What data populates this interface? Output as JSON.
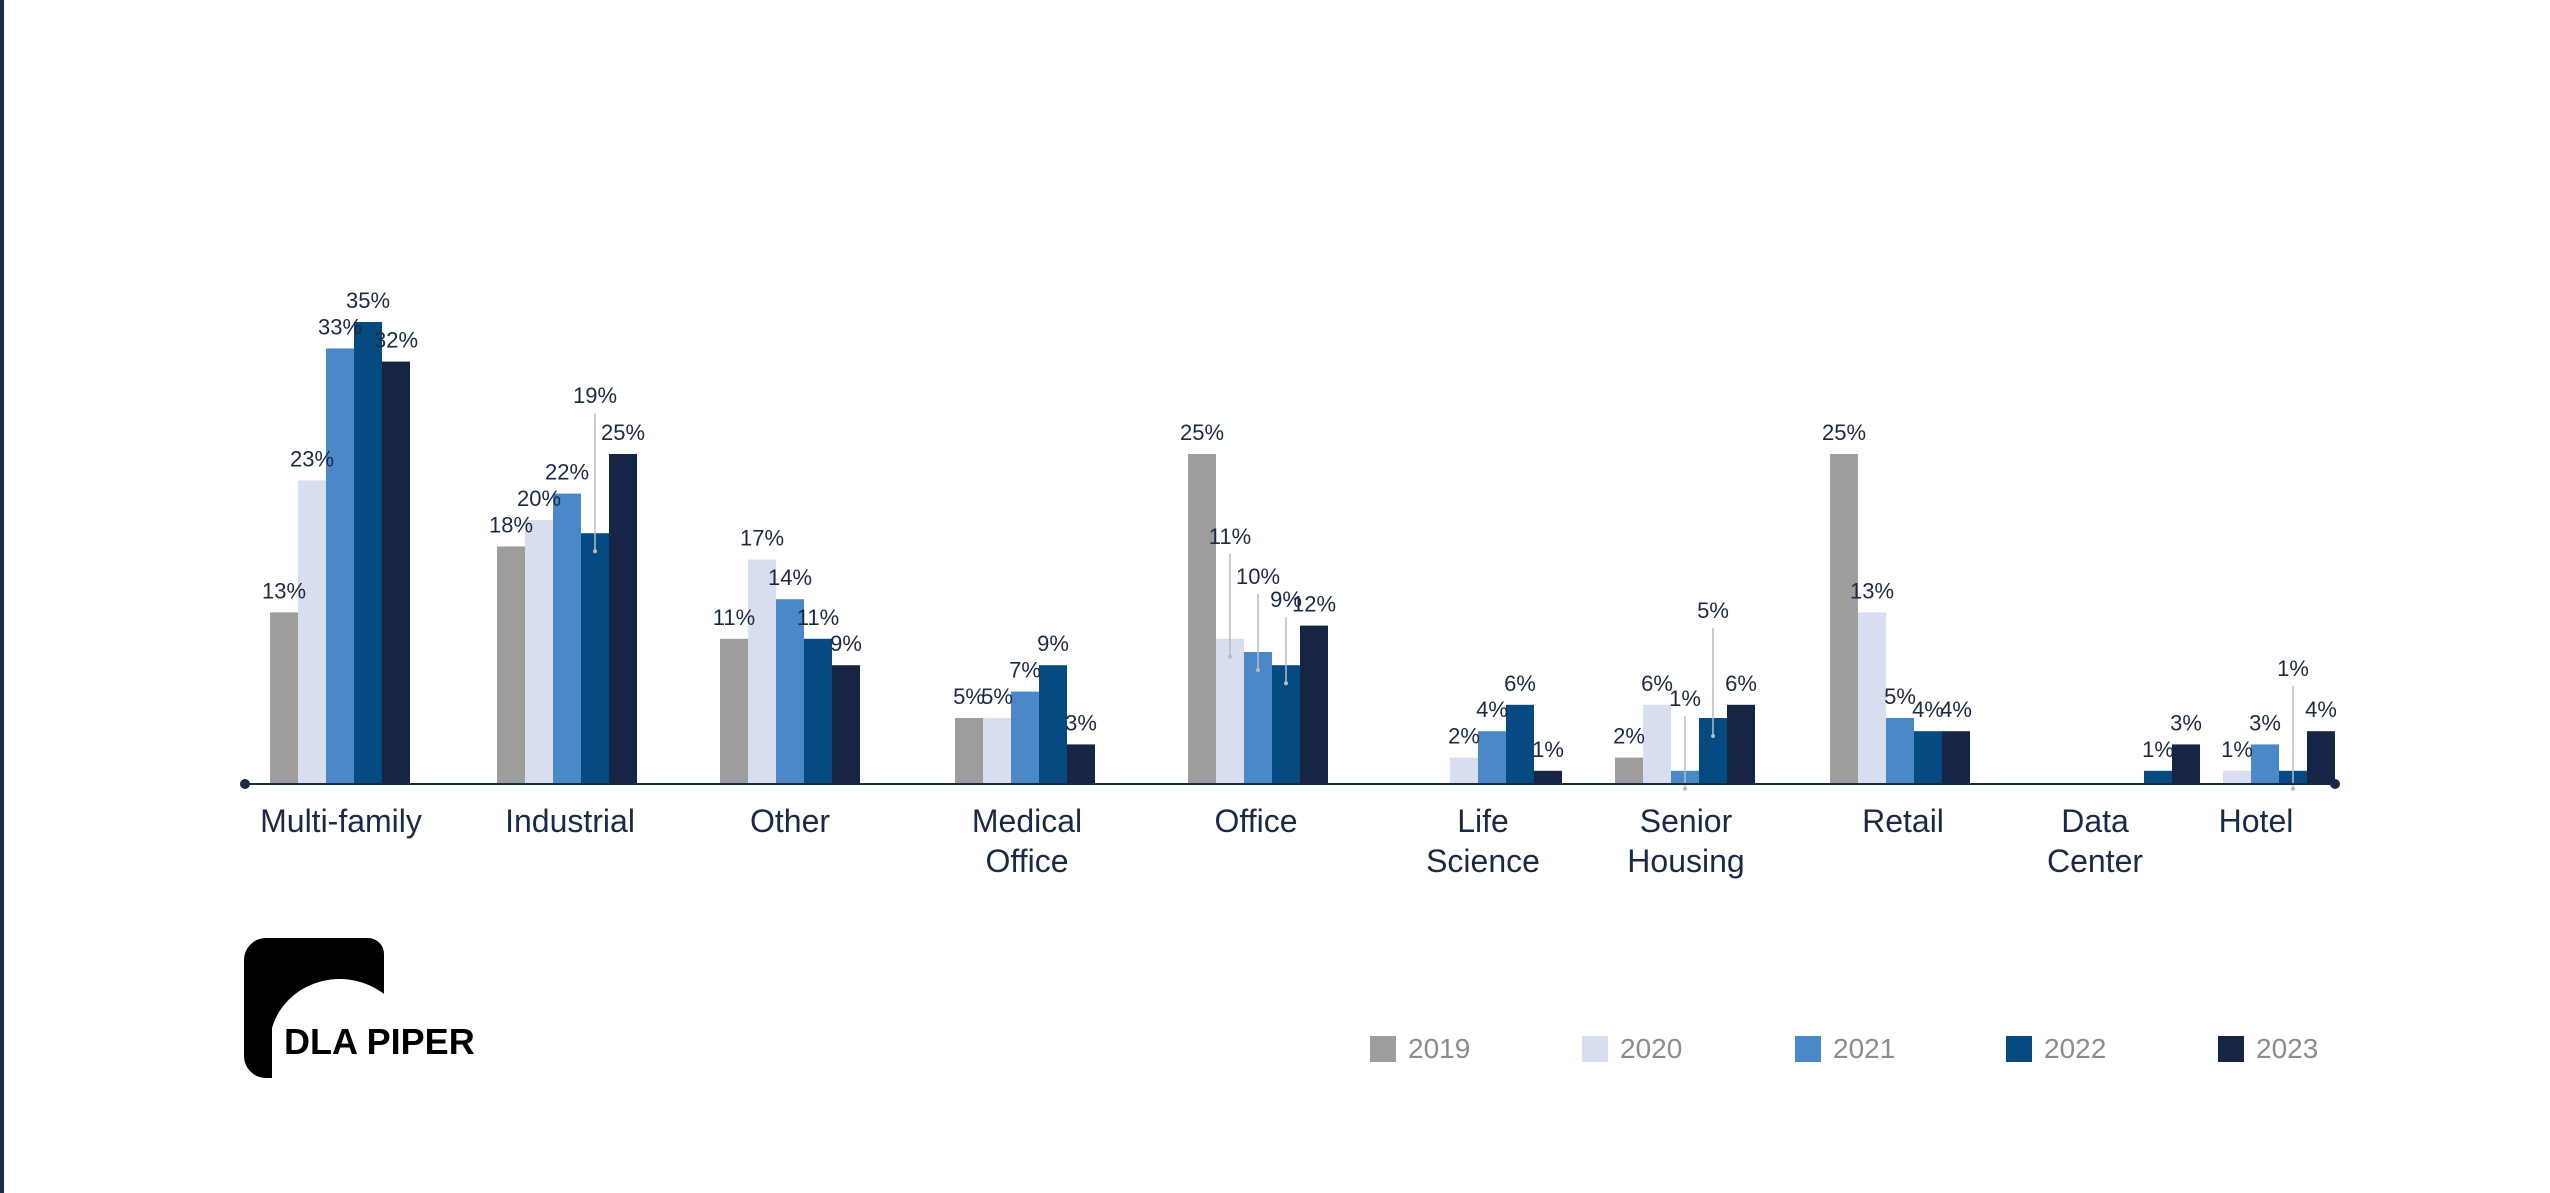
{
  "chart_data": {
    "type": "bar",
    "categories": [
      [
        "Multi-family"
      ],
      [
        "Industrial"
      ],
      [
        "Other"
      ],
      [
        "Medical",
        "Office"
      ],
      [
        "Office"
      ],
      [
        "Life",
        "Science"
      ],
      [
        "Senior",
        "Housing"
      ],
      [
        "Retail"
      ],
      [
        "Data",
        "Center"
      ],
      [
        "Hotel"
      ]
    ],
    "series": [
      {
        "name": "2019",
        "color": "#9e9d9c",
        "values": [
          13,
          18,
          11,
          5,
          25,
          null,
          2,
          25,
          null,
          null
        ]
      },
      {
        "name": "2020",
        "color": "#d9ddf0",
        "values": [
          23,
          20,
          17,
          5,
          11,
          2,
          6,
          13,
          null,
          1
        ]
      },
      {
        "name": "2021",
        "color": "#4a88c7",
        "values": [
          33,
          22,
          14,
          7,
          10,
          4,
          1,
          5,
          null,
          3
        ]
      },
      {
        "name": "2022",
        "color": "#054a80",
        "values": [
          35,
          19,
          11,
          9,
          9,
          6,
          5,
          4,
          1,
          1
        ]
      },
      {
        "name": "2023",
        "color": "#152543",
        "values": [
          32,
          25,
          9,
          3,
          12,
          1,
          6,
          4,
          3,
          4
        ]
      }
    ],
    "value_suffix": "%",
    "ylim": [
      0,
      36
    ],
    "grid": false,
    "legend_position": "bottom-right"
  },
  "brand": {
    "logo_text": "DLA PIPER",
    "axis_color": "#1b2a44",
    "label_color": "#1b2a44",
    "legend_text_color": "#8c8c8c"
  }
}
